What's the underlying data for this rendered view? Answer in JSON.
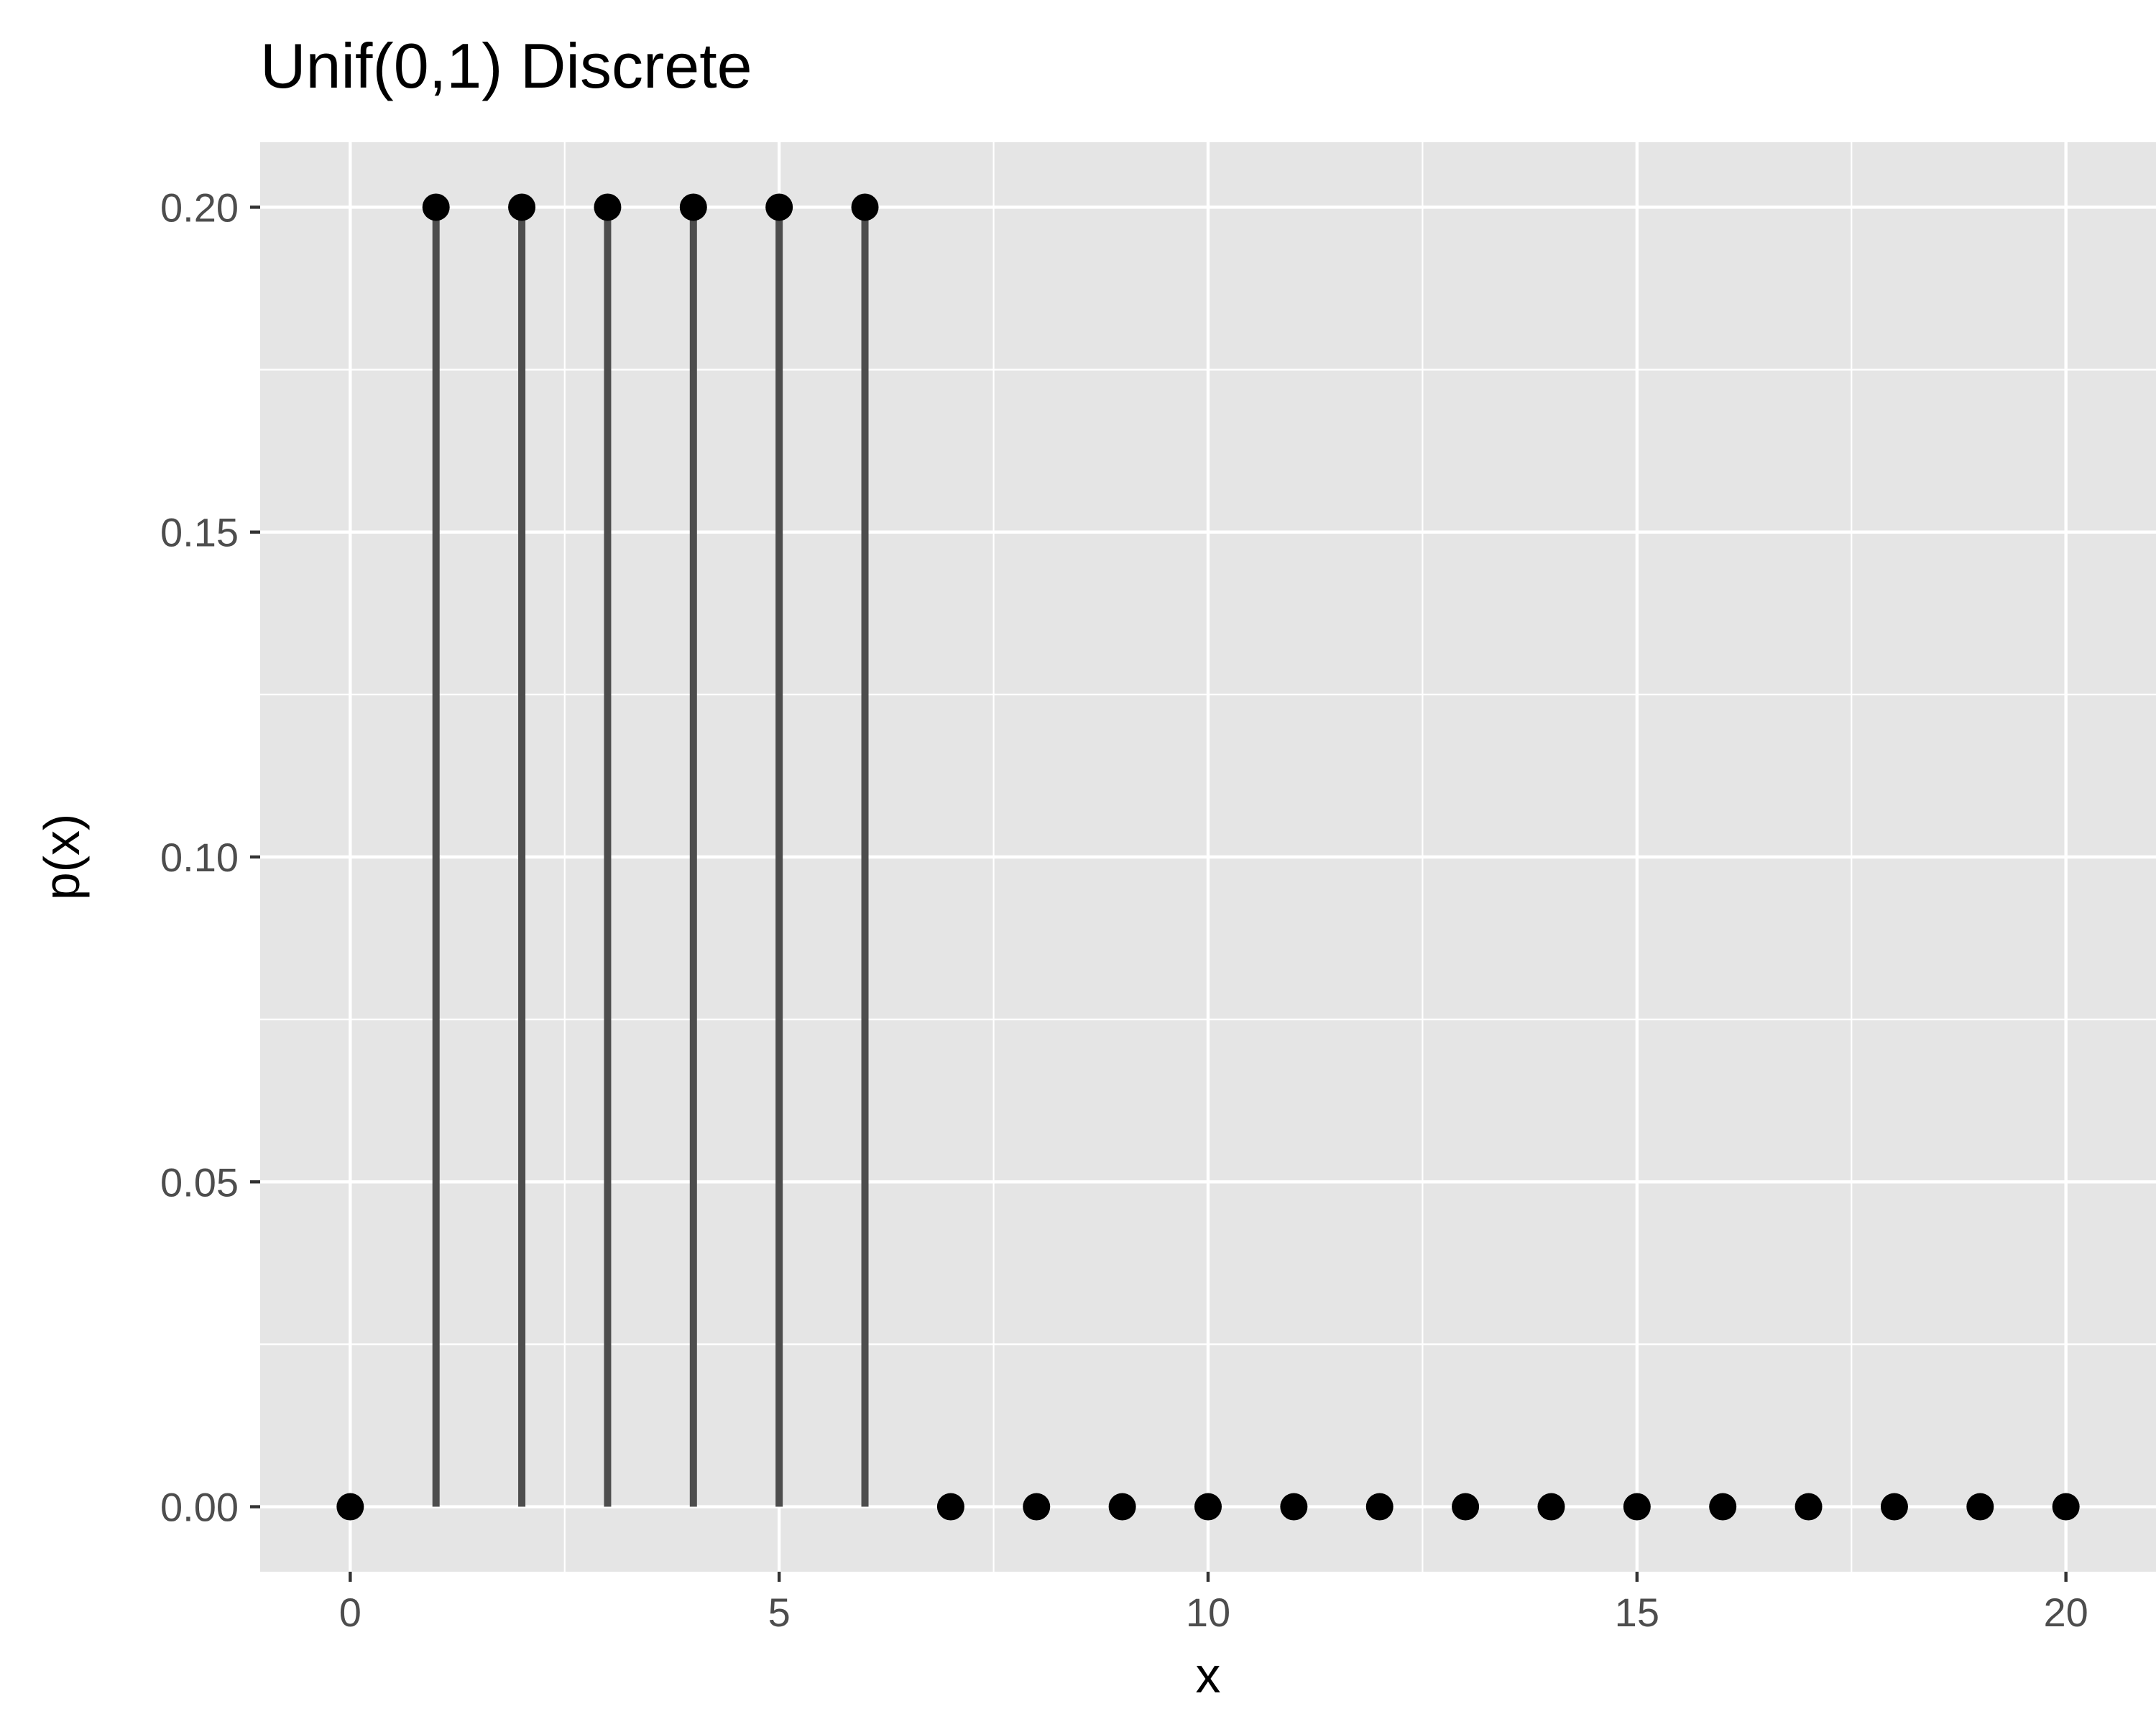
{
  "chart_data": {
    "type": "scatter",
    "title": "Unif(0,1) Discrete",
    "xlabel": "x",
    "ylabel": "p(x)",
    "xlim": [
      -1.05,
      21.05
    ],
    "ylim": [
      -0.01,
      0.21
    ],
    "x_ticks": [
      0,
      5,
      10,
      15,
      20
    ],
    "x_tick_labels": [
      "0",
      "5",
      "10",
      "15",
      "20"
    ],
    "y_ticks": [
      0.0,
      0.05,
      0.1,
      0.15,
      0.2
    ],
    "y_tick_labels": [
      "0.00",
      "0.05",
      "0.10",
      "0.15",
      "0.20"
    ],
    "x": [
      0,
      1,
      2,
      3,
      4,
      5,
      6,
      7,
      8,
      9,
      10,
      11,
      12,
      13,
      14,
      15,
      16,
      17,
      18,
      19,
      20
    ],
    "y": [
      0,
      0.2,
      0.2,
      0.2,
      0.2,
      0.2,
      0.2,
      0,
      0,
      0,
      0,
      0,
      0,
      0,
      0,
      0,
      0,
      0,
      0,
      0,
      0
    ],
    "segments": [
      {
        "x": 1,
        "y_start": 0,
        "y_end": 0.2
      },
      {
        "x": 2,
        "y_start": 0,
        "y_end": 0.2
      },
      {
        "x": 3,
        "y_start": 0,
        "y_end": 0.2
      },
      {
        "x": 4,
        "y_start": 0,
        "y_end": 0.2
      },
      {
        "x": 5,
        "y_start": 0,
        "y_end": 0.2
      },
      {
        "x": 6,
        "y_start": 0,
        "y_end": 0.2
      }
    ],
    "grid": true,
    "legend": "none",
    "colors": {
      "panel": "#e5e5e5",
      "grid": "#ffffff",
      "points": "#000000",
      "segments": "#4d4d4d",
      "ticks": "#333333",
      "tick_labels": "#4d4d4d"
    }
  }
}
